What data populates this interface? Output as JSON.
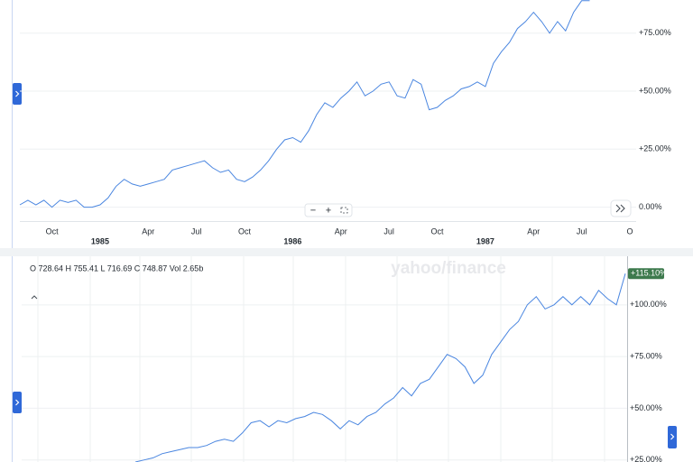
{
  "chart_data": [
    {
      "type": "line",
      "categories": [
        null,
        null,
        null,
        null,
        "Oct",
        null,
        null,
        null,
        null,
        null,
        "1985",
        null,
        null,
        null,
        null,
        null,
        "Apr",
        null,
        null,
        null,
        null,
        null,
        "Jul",
        null,
        null,
        null,
        null,
        null,
        "Oct",
        null,
        null,
        null,
        null,
        null,
        "1986",
        null,
        null,
        null,
        null,
        null,
        "Apr",
        null,
        null,
        null,
        null,
        null,
        "Jul",
        null,
        null,
        null,
        null,
        null,
        "Oct",
        null,
        null,
        null,
        null,
        null,
        "1987",
        null,
        null,
        null,
        null,
        null,
        "Apr",
        null,
        null,
        null,
        null,
        null,
        "Jul",
        null,
        null,
        null,
        null,
        null,
        "O"
      ],
      "series": [
        {
          "color": "#4a86e0",
          "values": [
            1,
            3,
            1,
            3,
            0,
            3,
            2,
            3,
            0,
            0,
            1,
            4,
            9,
            12,
            10,
            9,
            10,
            11,
            12,
            16,
            17,
            18,
            19,
            20,
            17,
            15,
            16,
            12,
            11,
            13,
            16,
            20,
            25,
            29,
            30,
            28,
            33,
            40,
            45,
            43,
            47,
            50,
            54,
            48,
            50,
            53,
            54,
            48,
            47,
            55,
            53,
            42,
            43,
            46,
            48,
            51,
            52,
            54,
            52,
            62,
            67,
            71,
            77,
            80,
            84,
            80,
            75,
            80,
            76,
            84,
            89,
            89,
            null,
            null,
            null,
            null,
            null
          ]
        }
      ],
      "ylim": [
        -6,
        89.3
      ],
      "yticks": [
        {
          "value": 0,
          "label": "0.00%"
        },
        {
          "value": 25,
          "label": "+25.00%"
        },
        {
          "value": 50,
          "label": "+50.00%"
        },
        {
          "value": 75,
          "label": "+75.00%"
        }
      ],
      "grid": true
    },
    {
      "type": "line",
      "ohlc": "O 728.64  H 755.41  L 716.69  C 748.87  Vol 2.65b",
      "watermark": "yahoo/finance",
      "series": [
        {
          "color": "#4a86e0",
          "values": [
            24,
            25,
            26,
            28,
            29,
            30,
            31,
            31,
            32,
            34,
            35,
            34,
            38,
            43,
            44,
            41,
            44,
            43,
            45,
            46,
            48,
            47,
            44,
            40,
            44,
            42,
            46,
            48,
            52,
            55,
            60,
            56,
            62,
            64,
            70,
            76,
            74,
            70,
            62,
            66,
            76,
            82,
            88,
            92,
            100,
            104,
            98,
            100,
            104,
            100,
            104,
            100,
            107,
            103,
            100,
            115.1
          ],
          "value_labels": [
            null,
            null,
            null,
            null,
            null,
            null,
            null,
            null,
            null,
            null,
            null,
            null,
            null,
            null,
            null,
            null,
            null,
            null,
            null,
            null,
            null,
            null,
            null,
            null,
            null,
            null,
            null,
            null,
            null,
            null,
            null,
            null,
            null,
            null,
            null,
            null,
            null,
            null,
            null,
            null,
            null,
            null,
            null,
            null,
            null,
            null,
            null,
            null,
            null,
            null,
            null,
            null,
            null,
            null,
            null,
            "+115.10%"
          ]
        }
      ],
      "ylim": [
        24,
        123.5
      ],
      "yticks": [
        {
          "value": 25,
          "label": "+25.00%"
        },
        {
          "value": 50,
          "label": "+50.00%"
        },
        {
          "value": 75,
          "label": "+75.00%"
        },
        {
          "value": 100,
          "label": "+100.00%"
        }
      ],
      "grid": true
    }
  ]
}
